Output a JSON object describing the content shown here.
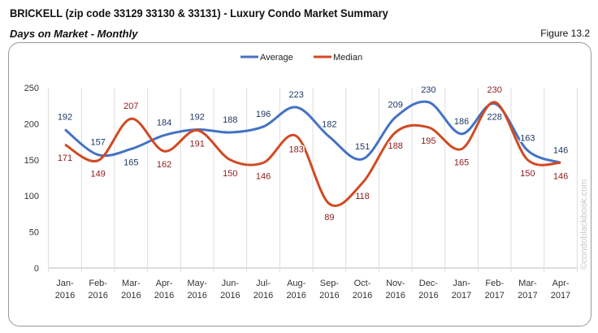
{
  "header": {
    "title": "BRICKELL (zip code 33129 33130 & 33131) - Luxury Condo Market Summary",
    "subtitle": "Days on Market - Monthly",
    "figure": "Figure 13.2"
  },
  "watermark": "©condoblackbook.com",
  "chart_data": {
    "type": "line",
    "categories": [
      [
        "Jan-",
        "2016"
      ],
      [
        "Feb-",
        "2016"
      ],
      [
        "Mar-",
        "2016"
      ],
      [
        "Apr-",
        "2016"
      ],
      [
        "May-",
        "2016"
      ],
      [
        "Jun-",
        "2016"
      ],
      [
        "Jul-",
        "2016"
      ],
      [
        "Aug-",
        "2016"
      ],
      [
        "Sep-",
        "2016"
      ],
      [
        "Oct-",
        "2016"
      ],
      [
        "Nov-",
        "2016"
      ],
      [
        "Dec-",
        "2016"
      ],
      [
        "Jan-",
        "2017"
      ],
      [
        "Feb-",
        "2017"
      ],
      [
        "Mar-",
        "2017"
      ],
      [
        "Apr-",
        "2017"
      ]
    ],
    "ylim": [
      0,
      250
    ],
    "yticks": [
      0,
      50,
      100,
      150,
      200,
      250
    ],
    "legend": "top",
    "grid": "vertical",
    "series": [
      {
        "name": "Average",
        "color": "#4472c4",
        "label_color": "#1f3864",
        "values": [
          192,
          157,
          165,
          184,
          192,
          188,
          196,
          223,
          182,
          151,
          209,
          230,
          186,
          228,
          163,
          146
        ]
      },
      {
        "name": "Median",
        "color": "#d04a22",
        "label_color": "#8b1a1a",
        "values": [
          171,
          149,
          207,
          162,
          191,
          150,
          146,
          183,
          89,
          118,
          188,
          195,
          165,
          230,
          150,
          146
        ]
      }
    ]
  }
}
